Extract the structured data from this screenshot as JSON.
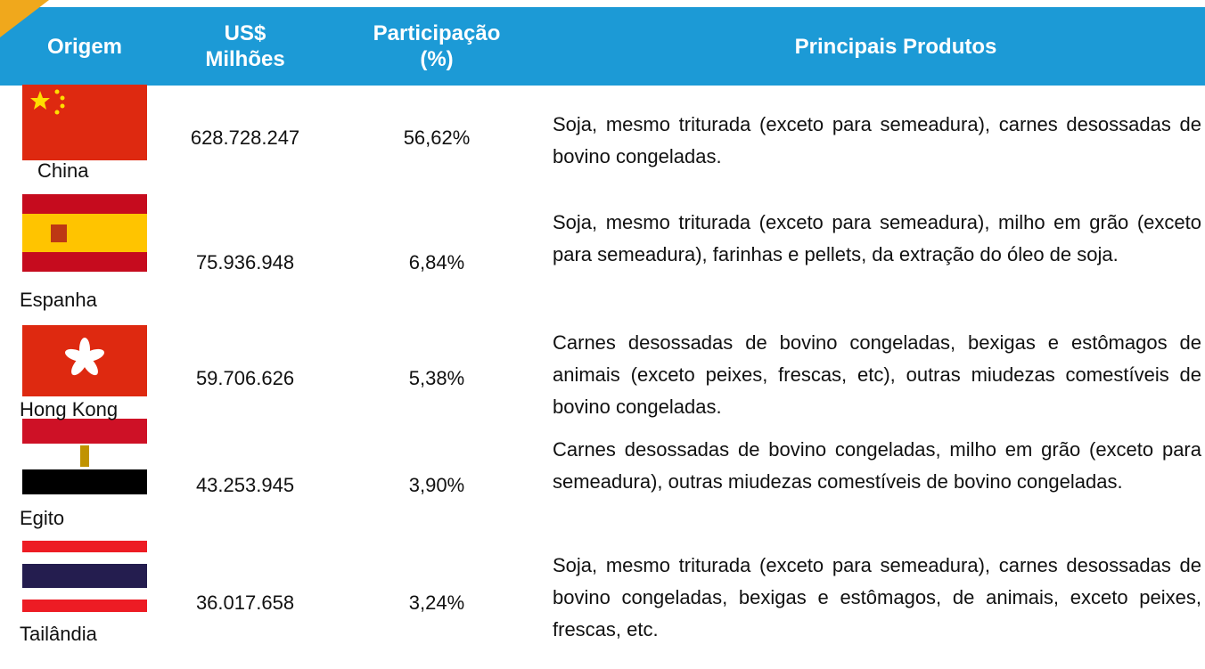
{
  "table": {
    "header": [
      "Origem",
      "US$ Milhões",
      "Participação (%)",
      "Principais Produtos"
    ],
    "rows": [
      [
        "China",
        "628.728.247",
        "56,62%",
        "Soja, mesmo triturada (exceto para semeadura), carnes desossadas de bovino congeladas."
      ],
      [
        "Espanha",
        "75.936.948",
        "6,84%",
        "Soja, mesmo triturada (exceto para semeadura), milho em grão (exceto para semeadura), farinhas e pellets, da extração do óleo de soja."
      ],
      [
        "Hong Kong",
        "59.706.626",
        "5,38%",
        "Carnes desossadas de bovino congeladas, bexigas e estômagos de animais (exceto peixes, frescas, etc), outras miudezas comestíveis de bovino congeladas."
      ],
      [
        "Egito",
        "43.253.945",
        "3,90%",
        "Carnes desossadas de bovino congeladas, milho em grão (exceto para semeadura), outras miudezas comestíveis de bovino congeladas."
      ],
      [
        "Tailândia",
        "36.017.658",
        "3,24%",
        "Soja, mesmo triturada (exceto para semeadura), carnes desossadas de bovino congeladas, bexigas e estômagos, de animais, exceto peixes, frescas, etc."
      ]
    ]
  }
}
